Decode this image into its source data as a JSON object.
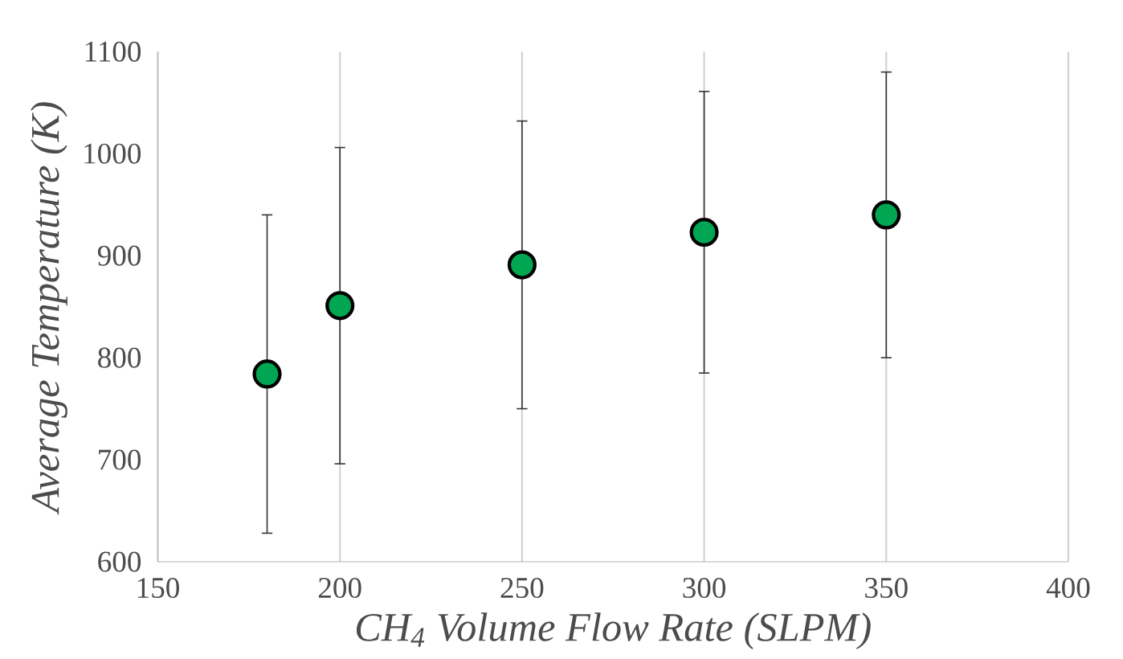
{
  "chart_data": {
    "type": "scatter",
    "xlabel": "CH$_{4}$ Volume Flow Rate (SLPM)",
    "ylabel": "Average Temperature (K)",
    "x": [
      180,
      200,
      250,
      300,
      350
    ],
    "series": [
      {
        "color": "#00a651",
        "values": [
          784,
          851,
          891,
          923,
          940
        ],
        "errors": [
          156,
          155,
          141,
          138,
          140
        ]
      }
    ],
    "xlim": [
      150,
      400
    ],
    "xticks": [
      150,
      200,
      250,
      300,
      350,
      400
    ],
    "ylim": [
      600,
      1100
    ],
    "yticks": [
      600,
      700,
      800,
      900,
      1000,
      1100
    ],
    "grid": "x"
  }
}
